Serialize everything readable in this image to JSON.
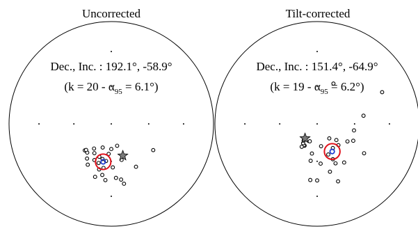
{
  "chart_data": [
    {
      "type": "scatter",
      "projection": "equal-area stereonet (lower hemisphere)",
      "title": "Uncorrected",
      "result_label": {
        "prefix": "Dec., Inc. : ",
        "dec": "192.1°",
        "sep": ", ",
        "inc": "-58.9°"
      },
      "stats_label": {
        "open": "(k = 20 - ",
        "alpha_symbol": "α",
        "alpha_sub": "95",
        "alpha_eq": " = 6.1°)"
      },
      "mean": {
        "dec": 192.1,
        "inc": -58.9,
        "a95": 6.1,
        "k": 20
      },
      "star": {
        "dec": 160,
        "inc": -63
      },
      "points": [
        [
          198,
          -57
        ],
        [
          190,
          -48
        ],
        [
          195,
          -52
        ],
        [
          205,
          -58
        ],
        [
          200,
          -62
        ],
        [
          185,
          -66
        ],
        [
          190,
          -54
        ],
        [
          210,
          -52
        ],
        [
          215,
          -56
        ],
        [
          220,
          -60
        ],
        [
          225,
          -60
        ],
        [
          224,
          -61
        ],
        [
          178,
          -55
        ],
        [
          175,
          -46
        ],
        [
          170,
          -44
        ],
        [
          168,
          -40
        ],
        [
          186,
          -44
        ],
        [
          197,
          -45
        ],
        [
          180,
          -70
        ],
        [
          164,
          -60
        ],
        [
          150,
          -50
        ],
        [
          122,
          -50
        ],
        [
          200,
          -70
        ],
        [
          215,
          -66
        ],
        [
          165,
          -72
        ],
        [
          194,
          -61
        ],
        [
          188,
          -60
        ],
        [
          210,
          -63
        ]
      ],
      "colors": {
        "points": "#000000",
        "mean": "#1e3cd2",
        "a95": "#e0101a",
        "star": "#7a7a7a"
      }
    },
    {
      "type": "scatter",
      "projection": "equal-area stereonet (lower hemisphere)",
      "title": "Tilt-corrected",
      "result_label": {
        "prefix": "Dec., Inc. : ",
        "dec": "151.4°",
        "sep": ", ",
        "inc": "-64.9°"
      },
      "stats_label": {
        "open": "(k = 19 - ",
        "alpha_symbol": "α",
        "alpha_sub": "95",
        "alpha_eq": " = 6.2°)"
      },
      "mean": {
        "dec": 151.4,
        "inc": -64.9,
        "a95": 6.2,
        "k": 19
      },
      "star": {
        "dec": 220,
        "inc": -75
      },
      "points": [
        [
          120,
          -62
        ],
        [
          115,
          -58
        ],
        [
          122,
          -45
        ],
        [
          130,
          -70
        ],
        [
          140,
          -75
        ],
        [
          100,
          -60
        ],
        [
          155,
          -55
        ],
        [
          165,
          -50
        ],
        [
          175,
          -58
        ],
        [
          190,
          -66
        ],
        [
          190,
          -60
        ],
        [
          210,
          -70
        ],
        [
          212,
          -70
        ],
        [
          216,
          -71
        ],
        [
          214,
          -68
        ],
        [
          219,
          -73
        ],
        [
          203,
          -75
        ],
        [
          156,
          -59
        ],
        [
          160,
          -40
        ],
        [
          180,
          -44
        ],
        [
          64,
          -30
        ],
        [
          80,
          -52
        ],
        [
          22,
          -55
        ],
        [
          135,
          -66
        ],
        [
          147,
          -67
        ],
        [
          170,
          -72
        ],
        [
          160,
          -64
        ],
        [
          145,
          -52
        ],
        [
          187,
          -44
        ]
      ],
      "colors": {
        "points": "#000000",
        "mean": "#1e3cd2",
        "a95": "#e0101a",
        "star": "#7a7a7a"
      }
    }
  ]
}
